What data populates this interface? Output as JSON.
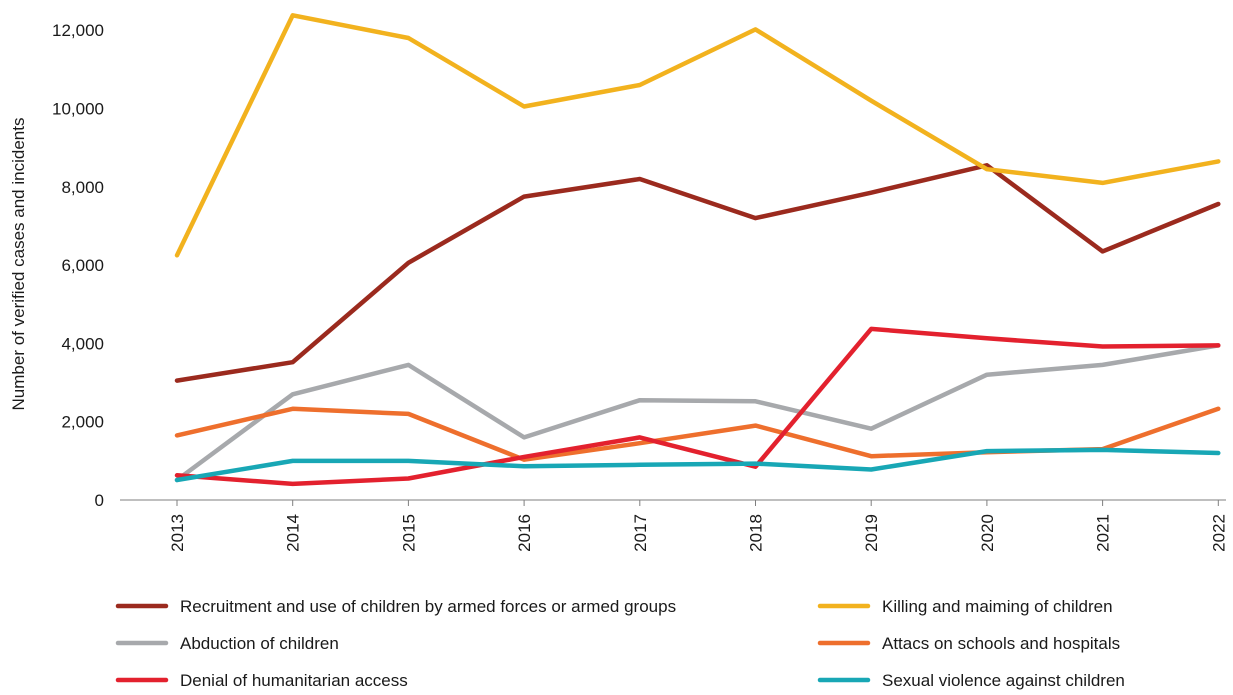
{
  "chart_data": {
    "type": "line",
    "title": "",
    "xlabel": "",
    "ylabel": "Number of verified cases and incidents",
    "x": [
      "2013",
      "2014",
      "2015",
      "2016",
      "2017",
      "2018",
      "2019",
      "2020",
      "2021",
      "2022"
    ],
    "ylim": [
      0,
      12500
    ],
    "yticks": [
      0,
      2000,
      4000,
      6000,
      8000,
      10000,
      12000
    ],
    "ytick_labels": [
      "0",
      "2,000",
      "4,000",
      "6,000",
      "8,000",
      "10,000",
      "12,000"
    ],
    "grid": false,
    "legend_position": "bottom",
    "series": [
      {
        "name": "Recruitment and use of children by armed forces or armed groups",
        "color": "#9B2A1E",
        "values": [
          3050,
          3520,
          6060,
          7750,
          8200,
          7200,
          7850,
          8550,
          6350,
          7560
        ]
      },
      {
        "name": "Killing and maiming of children",
        "color": "#F2B21E",
        "values": [
          6250,
          12380,
          11800,
          10050,
          10600,
          12020,
          10200,
          8450,
          8100,
          8650
        ]
      },
      {
        "name": "Abduction of children",
        "color": "#A7A9AC",
        "values": [
          510,
          2700,
          3450,
          1600,
          2550,
          2520,
          1820,
          3200,
          3450,
          3950
        ]
      },
      {
        "name": "Attacs on schools and hospitals",
        "color": "#EE6F2D",
        "values": [
          1650,
          2330,
          2200,
          1030,
          1450,
          1900,
          1120,
          1220,
          1300,
          2330
        ]
      },
      {
        "name": "Denial of humanitarian access",
        "color": "#E3212E",
        "values": [
          630,
          410,
          550,
          1100,
          1600,
          850,
          4370,
          4130,
          3920,
          3950
        ]
      },
      {
        "name": "Sexual violence against children",
        "color": "#18A7B5",
        "values": [
          510,
          1000,
          1000,
          860,
          900,
          930,
          780,
          1250,
          1280,
          1200
        ]
      }
    ]
  }
}
